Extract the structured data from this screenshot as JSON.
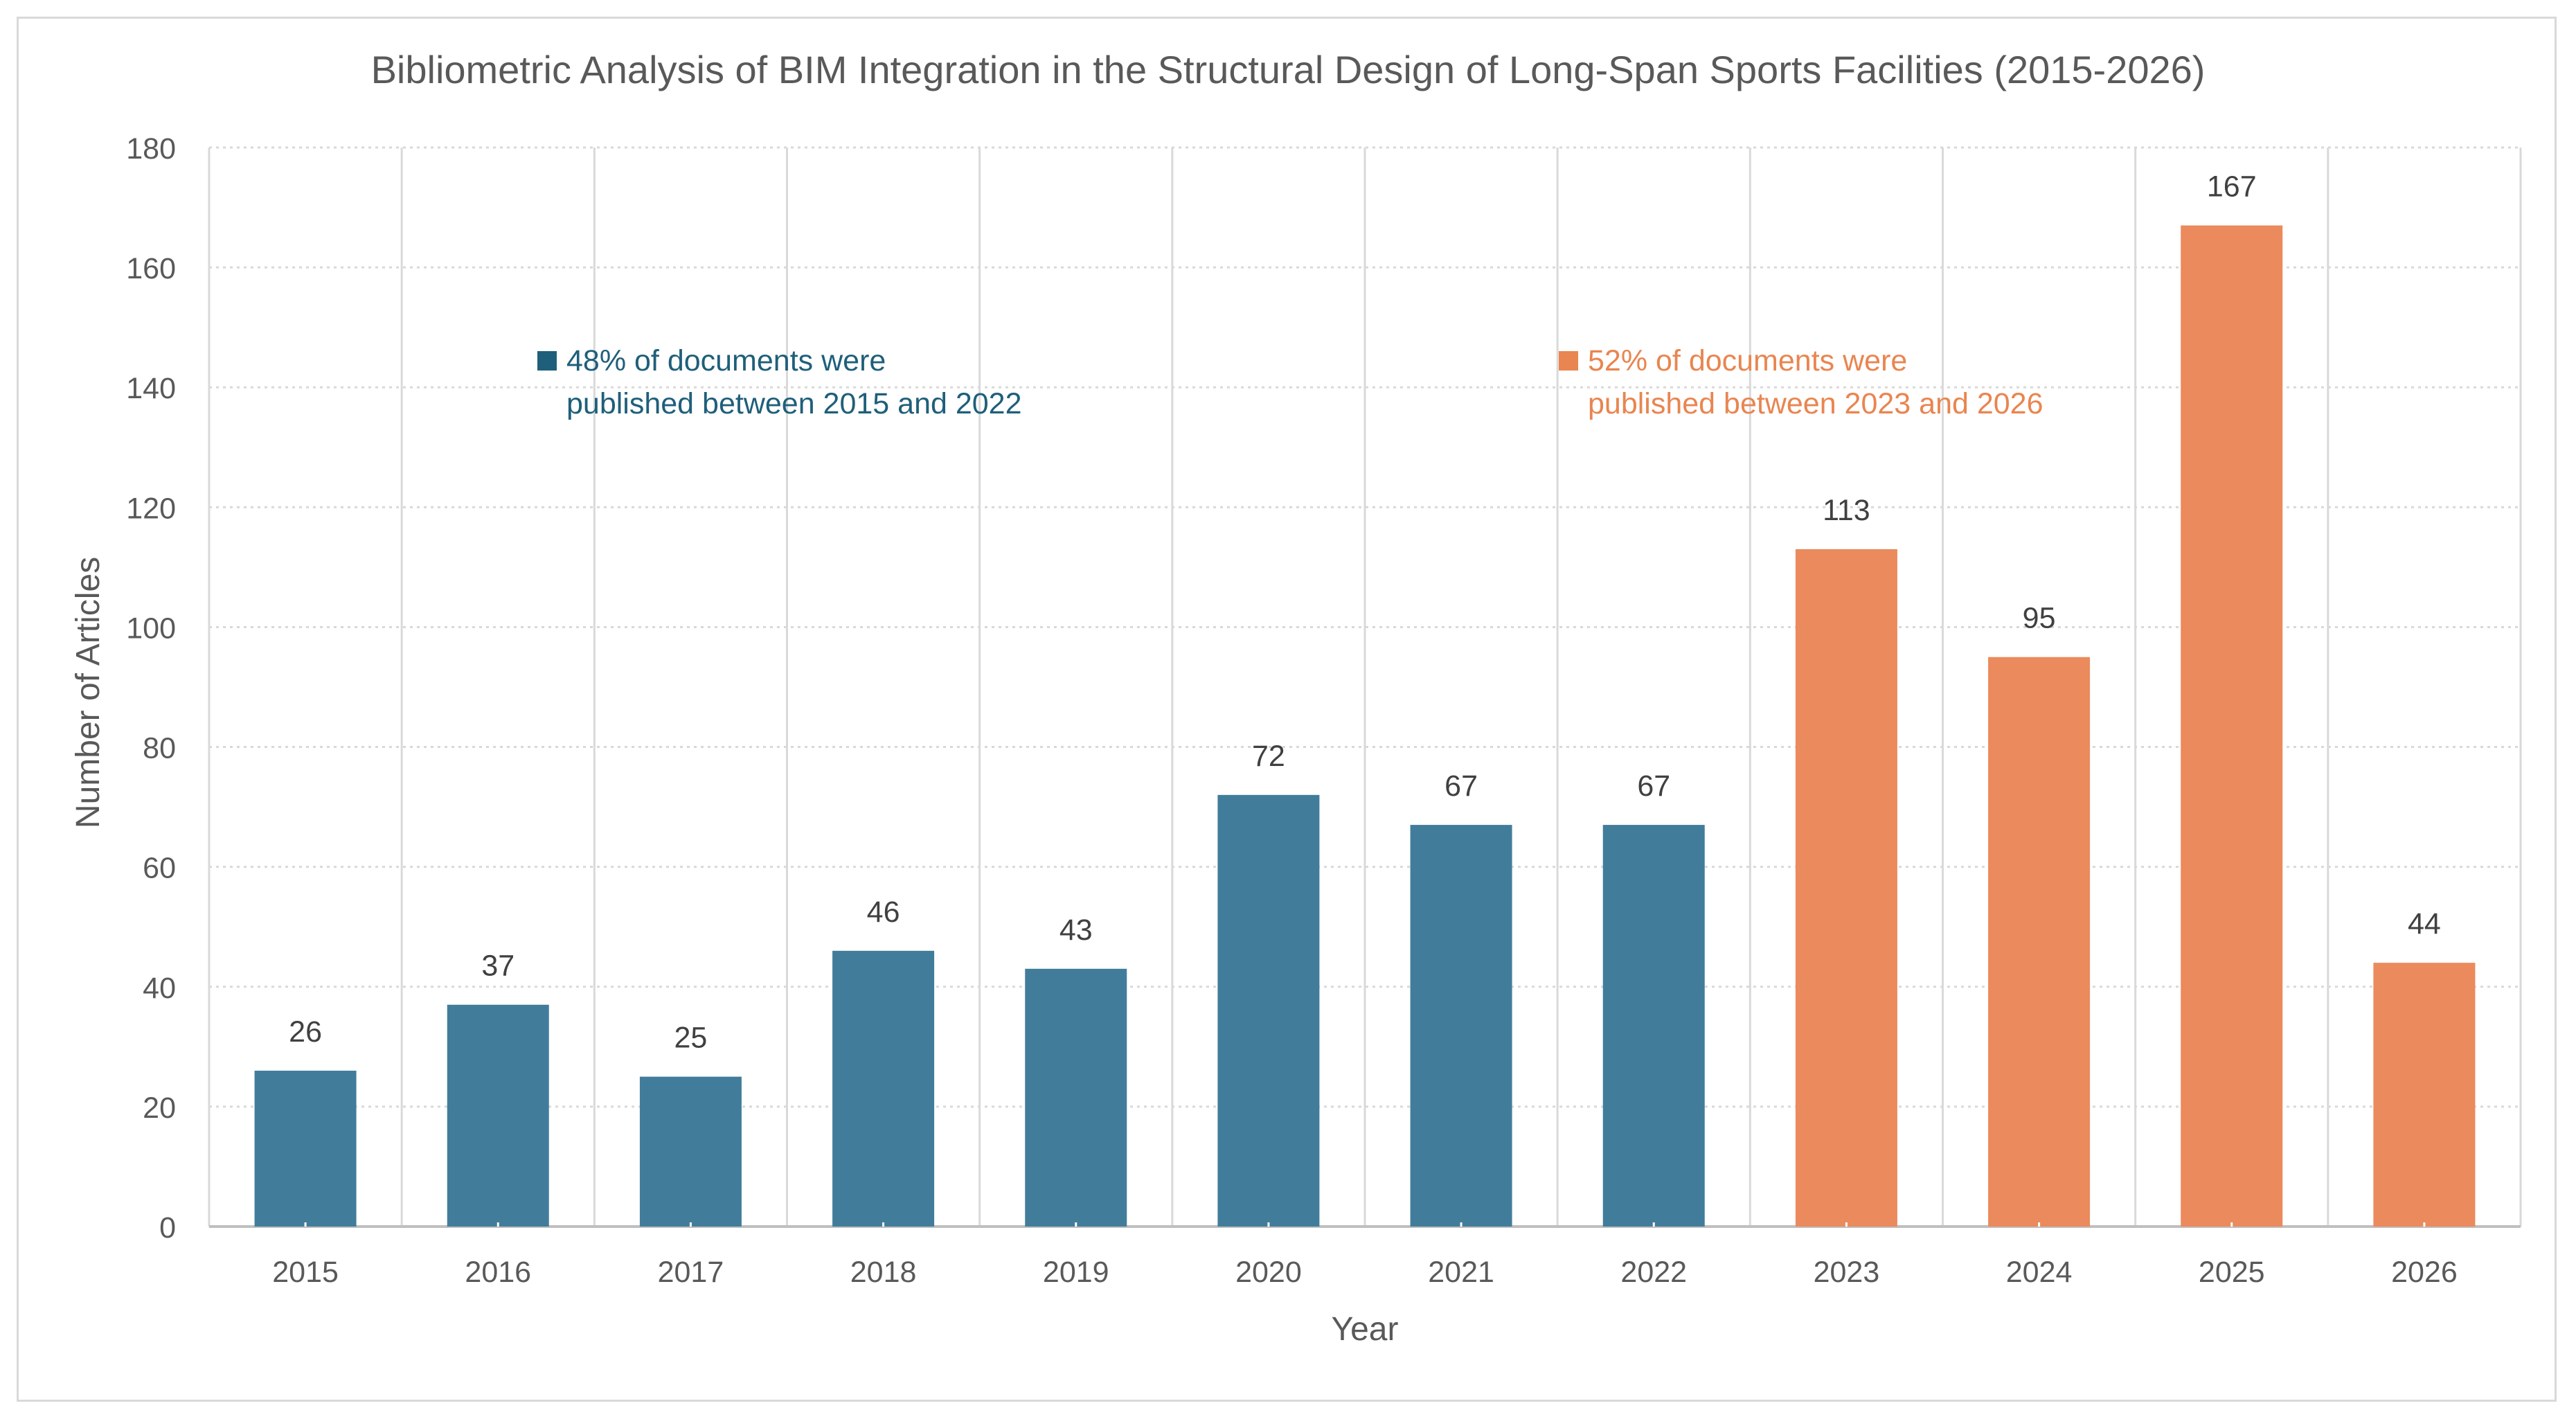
{
  "chart_data": {
    "type": "bar",
    "title": "Bibliometric Analysis of BIM Integration in the Structural Design of Long-Span Sports Facilities (2015-2026)",
    "xlabel": "Year",
    "ylabel": "Number of Articles",
    "ylim": [
      0,
      180
    ],
    "yticks": [
      0,
      20,
      40,
      60,
      80,
      100,
      120,
      140,
      160,
      180
    ],
    "categories": [
      "2015",
      "2016",
      "2017",
      "2018",
      "2019",
      "2020",
      "2021",
      "2022",
      "2023",
      "2024",
      "2025",
      "2026"
    ],
    "values": [
      26,
      37,
      25,
      46,
      43,
      72,
      67,
      67,
      113,
      95,
      167,
      44
    ],
    "bar_colors": [
      "#417d9b",
      "#417d9b",
      "#417d9b",
      "#417d9b",
      "#417d9b",
      "#417d9b",
      "#417d9b",
      "#417d9b",
      "#eb8a5c",
      "#eb8a5c",
      "#eb8a5c",
      "#eb8a5c"
    ],
    "grid": true,
    "annotations": [
      {
        "line1": "48% of documents were",
        "line2": "published between 2015 and 2022",
        "color": "#1f5f7a"
      },
      {
        "line1": "52% of documents were",
        "line2": "published between 2023 and 2026",
        "color": "#e98550"
      }
    ]
  }
}
